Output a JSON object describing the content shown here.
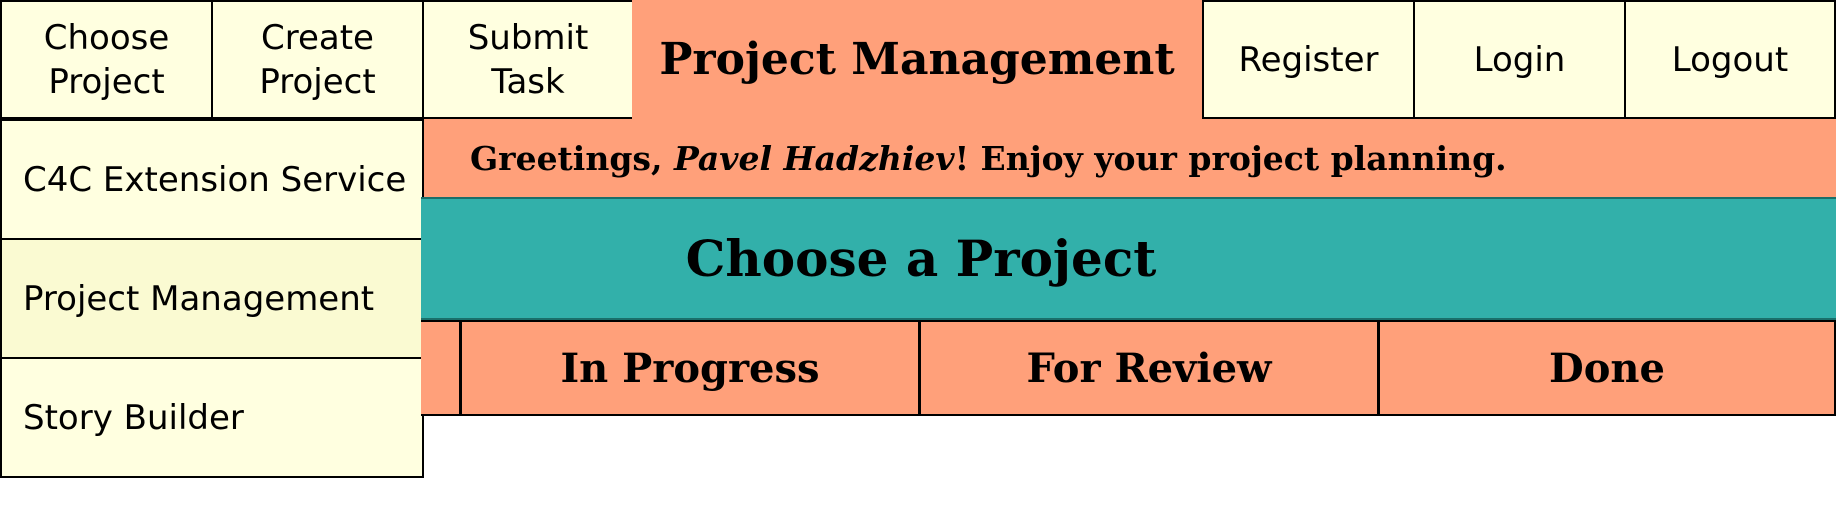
{
  "nav": {
    "choose_project": "Choose\nProject",
    "create_project": "Create\nProject",
    "submit_task": "Submit\nTask",
    "register": "Register",
    "login": "Login",
    "logout": "Logout"
  },
  "header": {
    "title": "Project Management"
  },
  "greeting": {
    "prefix": "Greetings, ",
    "user_name": "Pavel Hadzhiev",
    "suffix": "! Enjoy your project planning."
  },
  "sidebar": {
    "items": [
      {
        "label": "C4C Extension Service",
        "active": false
      },
      {
        "label": "Project Management",
        "active": true
      },
      {
        "label": "Story Builder",
        "active": false
      }
    ]
  },
  "main": {
    "banner_title": "Choose a Project",
    "columns": [
      "In Progress",
      "For Review",
      "Done"
    ]
  },
  "colors": {
    "nav_bg": "#ffffe0",
    "accent_salmon": "#ffa07a",
    "banner_teal": "#32b0aa",
    "sidebar_active": "#fafad2"
  }
}
